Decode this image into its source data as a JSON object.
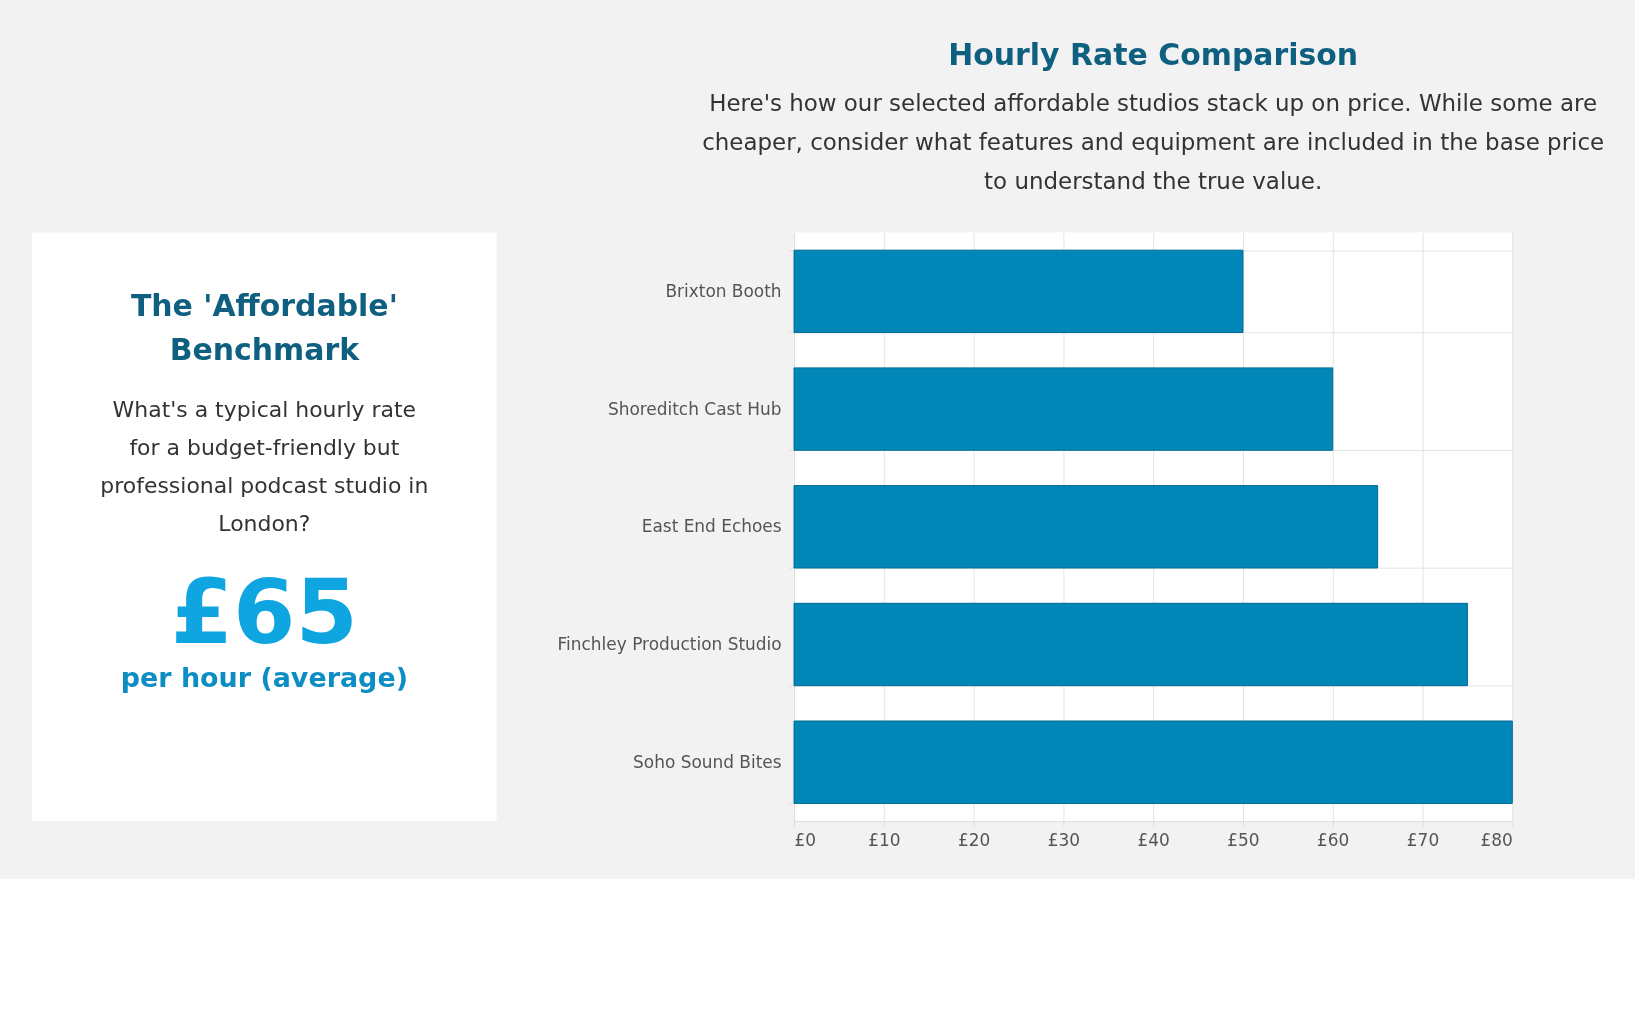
{
  "chart_data": [
    {
      "type": "other",
      "title": "The 'Affordable' Benchmark",
      "subtitle": "What's a typical hourly rate for a budget-friendly but professional podcast studio in London?",
      "annotations": [
        "£65",
        "per hour (average)"
      ]
    },
    {
      "type": "bar",
      "orientation": "horizontal",
      "title": "Hourly Rate Comparison",
      "subtitle": "Here's how our selected affordable studios stack up on price. While some are cheaper, consider what features and equipment are included in the base price to understand the true value.",
      "categories": [
        "Brixton Booth",
        "Shoreditch Cast Hub",
        "East End Echoes",
        "Finchley Production Studio",
        "Soho Sound Bites"
      ],
      "values": [
        50,
        60,
        65,
        75,
        80
      ],
      "color": "#0087b8",
      "xlim": [
        0,
        80
      ],
      "xticks": [
        {
          "value": 0,
          "label": "£0"
        },
        {
          "value": 10,
          "label": "£10"
        },
        {
          "value": 20,
          "label": "£20"
        },
        {
          "value": 30,
          "label": "£30"
        },
        {
          "value": 40,
          "label": "£40"
        },
        {
          "value": 50,
          "label": "£50"
        },
        {
          "value": 60,
          "label": "£60"
        },
        {
          "value": 70,
          "label": "£70"
        },
        {
          "value": 80,
          "label": "£80"
        }
      ],
      "grid": true
    }
  ]
}
